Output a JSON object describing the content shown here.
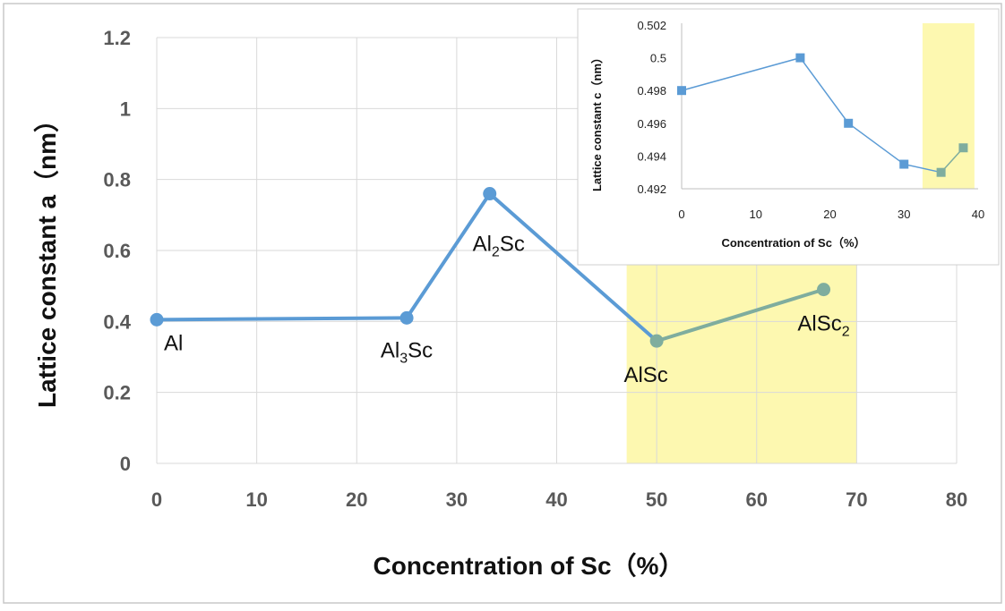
{
  "chart_data": [
    {
      "type": "line",
      "xlabel": "Concentration of Sc（%）",
      "ylabel": "Lattice constant a（nm）",
      "xlim": [
        0,
        80
      ],
      "ylim": [
        0,
        1.2
      ],
      "xticks": [
        "0",
        "10",
        "20",
        "30",
        "40",
        "50",
        "60",
        "70",
        "80"
      ],
      "yticks": [
        "0",
        "0.2",
        "0.4",
        "0.6",
        "0.8",
        "1",
        "1.2"
      ],
      "grid": true,
      "highlight_x_range": [
        47,
        70
      ],
      "highlight_color": "#fdf8b0",
      "series": [
        {
          "color": "#5b9bd5",
          "marker": "circle",
          "x": [
            0,
            25,
            33.3,
            50,
            66.7
          ],
          "y": [
            0.405,
            0.41,
            0.76,
            0.345,
            0.49
          ],
          "point_labels": [
            {
              "base": "Al",
              "sub": "",
              "tail": ""
            },
            {
              "base": "Al",
              "sub": "3",
              "tail": "Sc"
            },
            {
              "base": "Al",
              "sub": "2",
              "tail": "Sc"
            },
            {
              "base": "AlSc",
              "sub": "",
              "tail": ""
            },
            {
              "base": "AlSc",
              "sub": "2",
              "tail": ""
            }
          ]
        }
      ]
    },
    {
      "type": "line",
      "xlabel": "Concentration of Sc（%）",
      "ylabel": "Lattice constant c（nm）",
      "xlim": [
        0,
        40
      ],
      "ylim": [
        0.492,
        0.502
      ],
      "xticks": [
        "0",
        "10",
        "20",
        "30",
        "40"
      ],
      "yticks": [
        "0.492",
        "0.494",
        "0.496",
        "0.498",
        "0.5",
        "0.502"
      ],
      "grid": false,
      "highlight_x_range": [
        32.5,
        39.5
      ],
      "highlight_color": "#fdf8b0",
      "series": [
        {
          "color": "#5b9bd5",
          "marker": "square",
          "x": [
            0,
            16,
            22.5,
            30,
            35,
            38
          ],
          "y": [
            0.498,
            0.5,
            0.496,
            0.4935,
            0.493,
            0.4945
          ]
        }
      ]
    }
  ],
  "colors": {
    "series_line": "#5b9bd5",
    "series_line_highlighted": "#7fad9e",
    "highlight_band": "#fdf8b0",
    "grid": "#d9d9d9"
  }
}
